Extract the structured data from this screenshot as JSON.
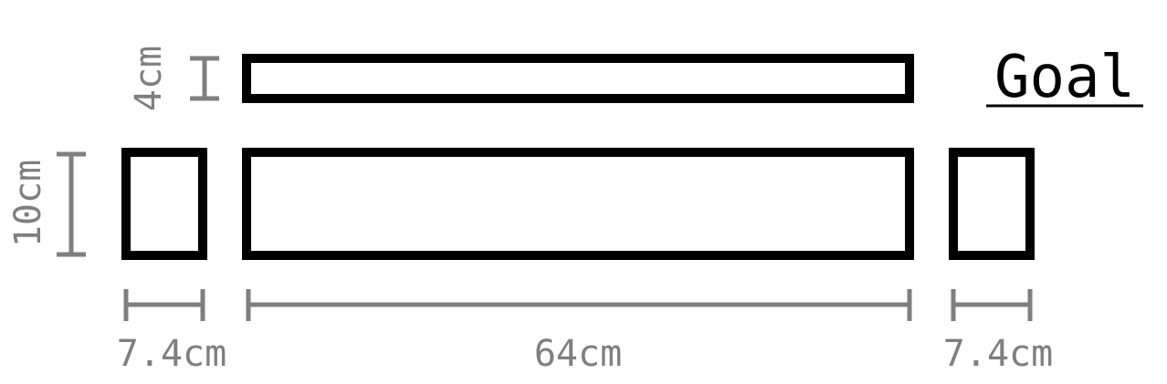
{
  "goal": {
    "text": "Goal"
  },
  "labels": {
    "target_height": "4cm",
    "panel_height": "10cm",
    "left_width": "7.4cm",
    "center_width": "64cm",
    "right_width": "7.4cm"
  },
  "colors": {
    "outline": "#000000",
    "dimension": "#7f7f7f"
  }
}
